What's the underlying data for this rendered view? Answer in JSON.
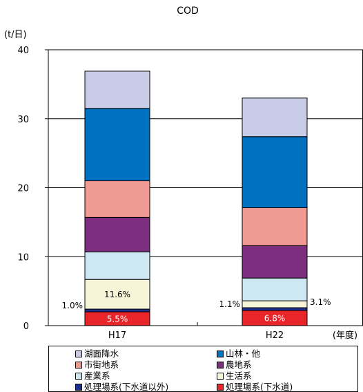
{
  "chart_data": {
    "type": "bar",
    "stacked": true,
    "title": "COD",
    "ylabel": "(t/日)",
    "xlabel": "(年度)",
    "ylim": [
      0,
      40
    ],
    "yticks": [
      "0",
      "10",
      "20",
      "30",
      "40"
    ],
    "categories": [
      "H17",
      "H22"
    ],
    "series": [
      {
        "name": "処理場系(下水道)",
        "color": "#e8262a",
        "values": [
          2.0,
          2.2
        ]
      },
      {
        "name": "処理場系(下水道以外)",
        "color": "#1f2f8c",
        "values": [
          0.4,
          0.4
        ]
      },
      {
        "name": "生活系",
        "color": "#f6f5d7",
        "values": [
          4.3,
          1.0
        ]
      },
      {
        "name": "産業系",
        "color": "#cde8f2",
        "values": [
          4.0,
          3.3
        ]
      },
      {
        "name": "農地系",
        "color": "#7b2f7e",
        "values": [
          5.0,
          4.7
        ]
      },
      {
        "name": "市街地系",
        "color": "#ef9a92",
        "values": [
          5.3,
          5.5
        ]
      },
      {
        "name": "山林・他",
        "color": "#0070c0",
        "values": [
          10.5,
          10.3
        ]
      },
      {
        "name": "湖面降水",
        "color": "#c8cce6",
        "values": [
          5.4,
          5.6
        ]
      }
    ],
    "annotations": [
      {
        "category": "H17",
        "series": "処理場系(下水道)",
        "text": "5.5%",
        "position": "inside",
        "color": "#ffffff"
      },
      {
        "category": "H17",
        "series": "処理場系(下水道以外)",
        "text": "1.0%",
        "position": "left",
        "color": "#000000"
      },
      {
        "category": "H17",
        "series": "生活系",
        "text": "11.6%",
        "position": "inside",
        "color": "#000000"
      },
      {
        "category": "H22",
        "series": "処理場系(下水道)",
        "text": "6.8%",
        "position": "inside",
        "color": "#ffffff"
      },
      {
        "category": "H22",
        "series": "処理場系(下水道以外)",
        "text": "1.1%",
        "position": "left",
        "color": "#000000"
      },
      {
        "category": "H22",
        "series": "生活系",
        "text": "3.1%",
        "position": "right",
        "color": "#000000"
      }
    ],
    "legend": {
      "placement": "bottom",
      "items": [
        "湖面降水",
        "山林・他",
        "市街地系",
        "農地系",
        "産業系",
        "生活系",
        "処理場系(下水道以外)",
        "処理場系(下水道)"
      ]
    }
  }
}
